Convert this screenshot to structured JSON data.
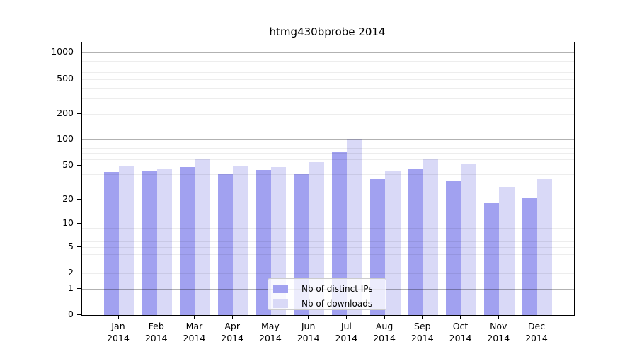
{
  "title": "htmg430bprobe 2014",
  "colors": {
    "distinct_ips": "#a1a1f0",
    "downloads": "#d9d9f7",
    "grid_major": "rgba(0,0,0,0.30)",
    "grid_minor": "rgba(0,0,0,0.07)",
    "axis": "#000000",
    "legend_bg": "rgba(255,255,255,0.8)",
    "legend_border": "#cccccc"
  },
  "chart_data": {
    "type": "bar",
    "title": "htmg430bprobe 2014",
    "scale": "log(1+x)",
    "grid": true,
    "legend_position": "lower center",
    "categories": [
      "Jan",
      "Feb",
      "Mar",
      "Apr",
      "May",
      "Jun",
      "Jul",
      "Aug",
      "Sep",
      "Oct",
      "Nov",
      "Dec"
    ],
    "x_year": "2014",
    "series": [
      {
        "name": "Nb of distinct IPs",
        "key": "distinct_ips",
        "values": [
          42,
          43,
          48,
          40,
          45,
          40,
          72,
          35,
          46,
          33,
          18,
          21
        ]
      },
      {
        "name": "Nb of downloads",
        "key": "downloads",
        "values": [
          50,
          46,
          60,
          50,
          48,
          55,
          100,
          43,
          60,
          53,
          28,
          35
        ]
      }
    ],
    "y_ticks": [
      0,
      1,
      2,
      5,
      10,
      20,
      50,
      100,
      200,
      500,
      1000
    ],
    "y_major_grid": [
      1,
      10,
      100,
      1000
    ],
    "y_minor_grid": [
      2,
      3,
      4,
      5,
      6,
      7,
      8,
      9,
      20,
      30,
      40,
      50,
      60,
      70,
      80,
      90,
      200,
      300,
      400,
      500,
      600,
      700,
      800,
      900
    ],
    "ylim": [
      0,
      1310
    ],
    "xlabel": "",
    "ylabel": ""
  }
}
